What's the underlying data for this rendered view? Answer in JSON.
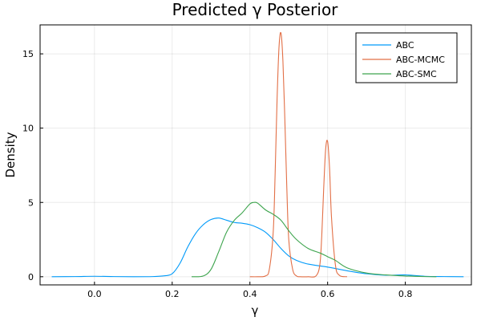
{
  "chart_data": {
    "type": "line",
    "title": "Predicted γ Posterior",
    "xlabel": "γ",
    "ylabel": "Density",
    "xlim": [
      -0.14,
      0.97
    ],
    "ylim": [
      -0.55,
      16.95
    ],
    "xticks": [
      0.0,
      0.2,
      0.4,
      0.6,
      0.8
    ],
    "xtick_labels": [
      "0.0",
      "0.2",
      "0.4",
      "0.6",
      "0.8"
    ],
    "yticks": [
      0,
      5,
      10,
      15
    ],
    "ytick_labels": [
      "0",
      "5",
      "10",
      "15"
    ],
    "grid": true,
    "legend_position": "top-right",
    "series": [
      {
        "name": "ABC",
        "color": "#009af9",
        "x": [
          -0.11,
          -0.05,
          0.0,
          0.05,
          0.1,
          0.15,
          0.18,
          0.2,
          0.22,
          0.24,
          0.26,
          0.28,
          0.3,
          0.32,
          0.34,
          0.36,
          0.38,
          0.4,
          0.42,
          0.44,
          0.46,
          0.48,
          0.5,
          0.52,
          0.55,
          0.6,
          0.65,
          0.7,
          0.75,
          0.8,
          0.85,
          0.9,
          0.95
        ],
        "y": [
          0.0,
          0.01,
          0.03,
          0.01,
          0.0,
          0.01,
          0.06,
          0.2,
          0.9,
          2.0,
          2.9,
          3.5,
          3.85,
          3.95,
          3.8,
          3.65,
          3.6,
          3.5,
          3.3,
          3.0,
          2.5,
          1.9,
          1.4,
          1.1,
          0.85,
          0.65,
          0.4,
          0.2,
          0.1,
          0.12,
          0.03,
          0.01,
          0.0
        ]
      },
      {
        "name": "ABC-MCMC",
        "color": "#e26f46",
        "x": [
          0.4,
          0.42,
          0.44,
          0.45,
          0.46,
          0.465,
          0.47,
          0.475,
          0.48,
          0.485,
          0.49,
          0.495,
          0.5,
          0.51,
          0.52,
          0.53,
          0.55,
          0.57,
          0.58,
          0.585,
          0.59,
          0.595,
          0.6,
          0.605,
          0.61,
          0.62,
          0.63,
          0.65
        ],
        "y": [
          0.0,
          0.0,
          0.05,
          0.5,
          3.0,
          7.0,
          12.0,
          15.5,
          16.4,
          14.5,
          10.5,
          6.0,
          2.5,
          0.5,
          0.05,
          0.0,
          0.0,
          0.05,
          0.8,
          2.8,
          6.0,
          8.6,
          9.1,
          7.3,
          4.0,
          0.8,
          0.1,
          0.0
        ]
      },
      {
        "name": "ABC-SMC",
        "color": "#3da44d",
        "x": [
          0.25,
          0.28,
          0.3,
          0.32,
          0.34,
          0.36,
          0.38,
          0.4,
          0.41,
          0.42,
          0.44,
          0.46,
          0.48,
          0.5,
          0.52,
          0.55,
          0.58,
          0.6,
          0.62,
          0.65,
          0.7,
          0.75,
          0.8,
          0.85,
          0.88
        ],
        "y": [
          0.0,
          0.05,
          0.5,
          1.7,
          3.0,
          3.8,
          4.3,
          4.9,
          5.0,
          4.95,
          4.5,
          4.2,
          3.8,
          3.1,
          2.5,
          1.9,
          1.6,
          1.35,
          1.1,
          0.6,
          0.25,
          0.12,
          0.05,
          0.01,
          0.0
        ]
      }
    ]
  }
}
